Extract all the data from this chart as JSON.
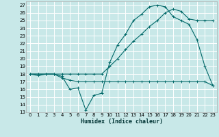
{
  "xlabel": "Humidex (Indice chaleur)",
  "bg_color": "#c8e8e8",
  "grid_color": "#ffffff",
  "line_color": "#006868",
  "xlim": [
    -0.5,
    23.5
  ],
  "ylim": [
    13,
    27.5
  ],
  "yticks": [
    13,
    14,
    15,
    16,
    17,
    18,
    19,
    20,
    21,
    22,
    23,
    24,
    25,
    26,
    27
  ],
  "xticks": [
    0,
    1,
    2,
    3,
    4,
    5,
    6,
    7,
    8,
    9,
    10,
    11,
    12,
    13,
    14,
    15,
    16,
    17,
    18,
    19,
    20,
    21,
    22,
    23
  ],
  "line1_x": [
    0,
    1,
    2,
    3,
    4,
    5,
    6,
    7,
    8,
    9,
    10,
    11,
    12,
    13,
    14,
    15,
    16,
    17,
    18,
    19,
    20,
    21,
    22,
    23
  ],
  "line1_y": [
    18,
    17.8,
    18,
    18,
    17.7,
    16.0,
    16.2,
    13.3,
    15.2,
    15.5,
    19.5,
    21.8,
    23.2,
    25.0,
    25.8,
    26.8,
    27.0,
    26.8,
    25.5,
    25.0,
    24.5,
    22.5,
    19.0,
    16.5
  ],
  "line2_x": [
    0,
    1,
    2,
    3,
    4,
    5,
    6,
    7,
    8,
    9,
    10,
    11,
    12,
    13,
    14,
    15,
    16,
    17,
    18,
    19,
    20,
    21,
    22,
    23
  ],
  "line2_y": [
    18,
    18,
    18,
    18,
    18,
    18,
    18,
    18,
    18,
    18,
    19.0,
    20.0,
    21.2,
    22.3,
    23.2,
    24.2,
    25.0,
    26.0,
    26.5,
    26.2,
    25.2,
    25.0,
    25.0,
    25.0
  ],
  "line3_x": [
    0,
    1,
    2,
    3,
    4,
    5,
    6,
    7,
    8,
    9,
    10,
    11,
    12,
    13,
    14,
    15,
    16,
    17,
    18,
    19,
    20,
    21,
    22,
    23
  ],
  "line3_y": [
    18,
    18,
    18,
    18,
    17.5,
    17.2,
    17.0,
    17.0,
    17.0,
    17.0,
    17.0,
    17.0,
    17.0,
    17.0,
    17.0,
    17.0,
    17.0,
    17.0,
    17.0,
    17.0,
    17.0,
    17.0,
    17.0,
    16.5
  ]
}
